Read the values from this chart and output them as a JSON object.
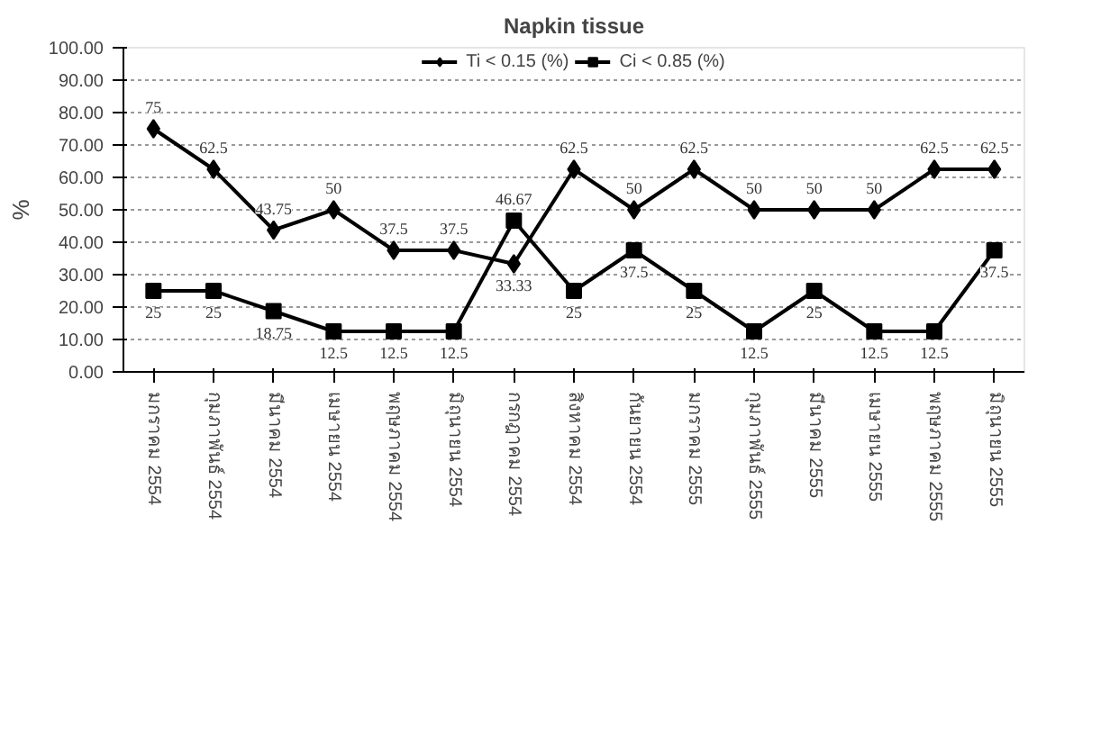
{
  "chart_data": {
    "type": "line",
    "title": "Napkin tissue",
    "ylabel": "%",
    "categories": [
      "มกราคม 2554",
      "กุมภาพันธ์ 2554",
      "มีนาคม 2554",
      "เมษายน 2554",
      "พฤษภาคม 2554",
      "มิถุนายน 2554",
      "กรกฎาคม 2554",
      "สิงหาคม 2554",
      "กันยายน 2554",
      "มกราคม 2555",
      "กุมภาพันธ์ 2555",
      "มีนาคม 2555",
      "เมษายน 2555",
      "พฤษภาคม 2555",
      "มิถุนายน 2555"
    ],
    "series": [
      {
        "name": "Ti < 0.15 (%)",
        "color": "#000000",
        "marker": "diamond",
        "values": [
          75,
          62.5,
          43.75,
          50,
          37.5,
          37.5,
          33.33,
          62.5,
          50,
          62.5,
          50,
          50,
          50,
          62.5,
          62.5
        ]
      },
      {
        "name": "Ci < 0.85 (%)",
        "color": "#000000",
        "marker": "square",
        "values": [
          25,
          25,
          18.75,
          12.5,
          12.5,
          12.5,
          46.67,
          25,
          37.5,
          25,
          12.5,
          25,
          12.5,
          12.5,
          37.5
        ]
      }
    ],
    "ylim": [
      0,
      100
    ],
    "yticks": [
      {
        "value": 0,
        "label": "0.00"
      },
      {
        "value": 10,
        "label": "10.00"
      },
      {
        "value": 20,
        "label": "20.00"
      },
      {
        "value": 30,
        "label": "30.00"
      },
      {
        "value": 40,
        "label": "40.00"
      },
      {
        "value": 50,
        "label": "50.00"
      },
      {
        "value": 60,
        "label": "60.00"
      },
      {
        "value": 70,
        "label": "70.00"
      },
      {
        "value": 80,
        "label": "80.00"
      },
      {
        "value": 90,
        "label": "90.00"
      },
      {
        "value": 100,
        "label": "100.00"
      }
    ],
    "grid": "y",
    "legend": "top",
    "data_labels": true,
    "line_style": "solid"
  }
}
